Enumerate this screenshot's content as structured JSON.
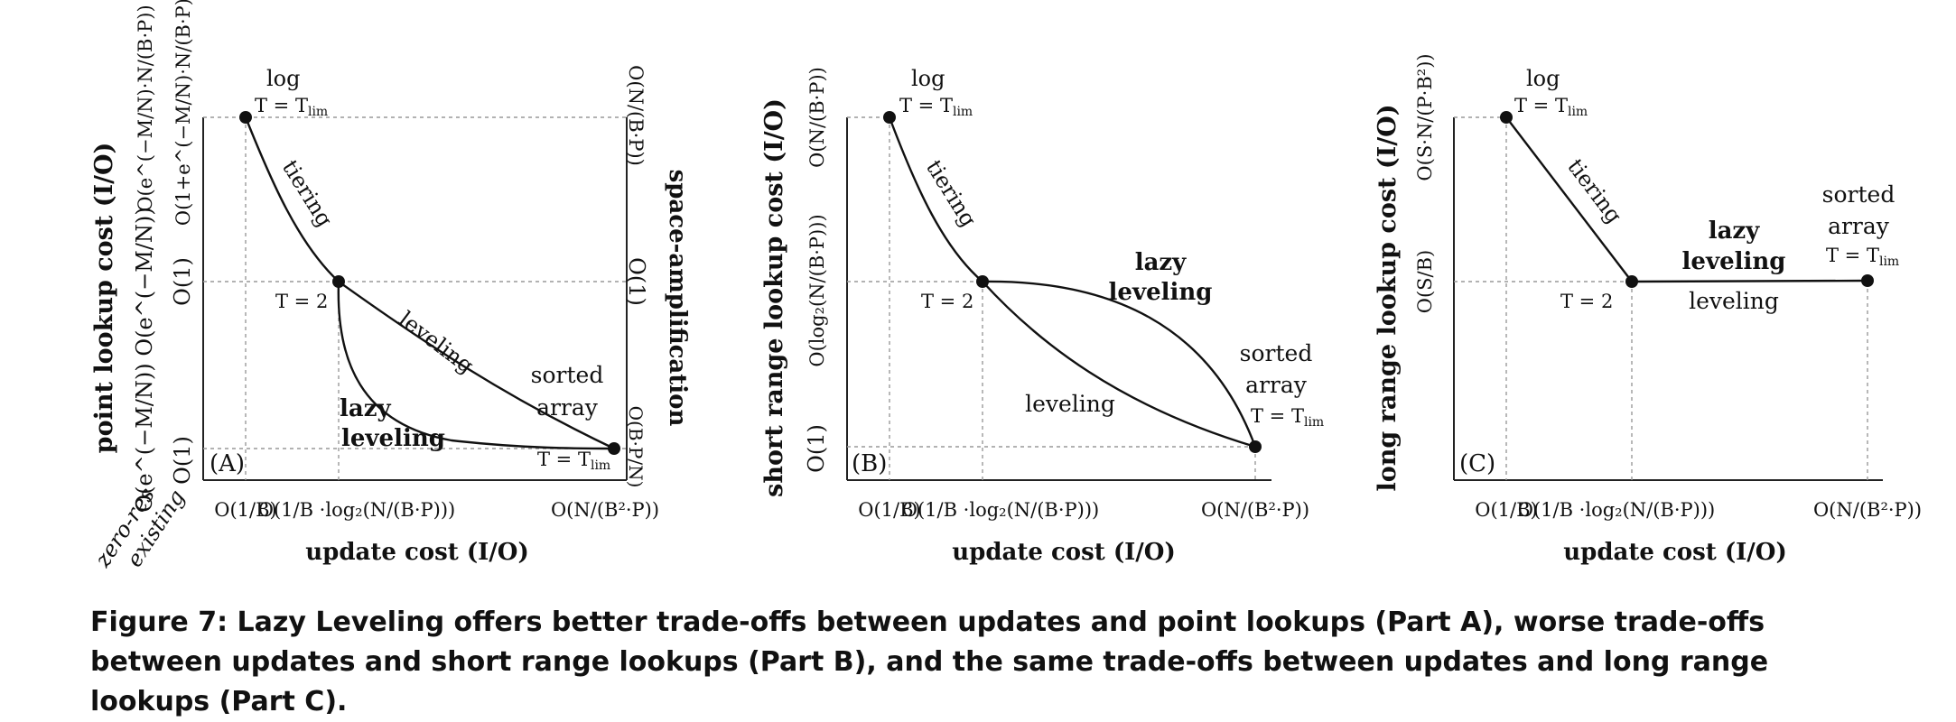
{
  "panels": {
    "a": {
      "tag": "(A)",
      "ylabel": "point lookup cost (I/O)",
      "xlabel": "update cost (I/O)",
      "right_label": "space-amplification",
      "xticks": [
        "O(1/B)",
        "O(1/B ·log₂(N/(B·P)))",
        "O(N/(B²·P))"
      ],
      "row_zero_res": [
        "O(e^(−M/N)·N/(B·P))",
        "O(e^(−M/N))",
        "O(e^(−M/N))"
      ],
      "row_existing": [
        "O(1+e^(−M/N)·N/(B·P))",
        "O(1)",
        "O(1)"
      ],
      "right_ticks": [
        "O(N/(B·P))",
        "O(1)",
        "O(B·P/N)"
      ],
      "left_axis_names": [
        "zero-res",
        "existing"
      ],
      "labels": {
        "log": "log",
        "t_lim_top": "T = T",
        "t2": "T = 2",
        "tiering": "tiering",
        "leveling": "leveling",
        "lazy": "lazy",
        "leveling2": "leveling",
        "sorted": "sorted",
        "array": "array",
        "t_lim_bottom": "T = T",
        "lim": "lim"
      }
    },
    "b": {
      "tag": "(B)",
      "ylabel": "short range lookup cost (I/O)",
      "xlabel": "update cost (I/O)",
      "yticks": [
        "O(N/(B·P))",
        "O(log₂(N/(B·P)))",
        "O(1)"
      ],
      "xticks": [
        "O(1/B)",
        "O(1/B ·log₂(N/(B·P)))",
        "O(N/(B²·P))"
      ],
      "labels": {
        "log": "log",
        "t_lim_top": "T = T",
        "t2": "T = 2",
        "tiering": "tiering",
        "lazy": "lazy",
        "leveling_bold": "leveling",
        "leveling": "leveling",
        "sorted": "sorted",
        "array": "array",
        "t_lim_bottom": "T = T",
        "lim": "lim"
      }
    },
    "c": {
      "tag": "(C)",
      "ylabel": "long range lookup cost (I/O)",
      "xlabel": "update cost (I/O)",
      "yticks": [
        "O(S·N/(P·B²))",
        "O(S/B)"
      ],
      "xticks": [
        "O(1/B)",
        "O(1/B ·log₂(N/(B·P)))",
        "O(N/(B²·P))"
      ],
      "labels": {
        "log": "log",
        "t_lim_top": "T = T",
        "t2": "T = 2",
        "tiering": "tiering",
        "lazy": "lazy",
        "leveling_bold": "leveling",
        "leveling": "leveling",
        "sorted": "sorted",
        "array": "array",
        "t_lim_right": "T = T",
        "lim": "lim"
      }
    }
  },
  "caption": "Figure 7: Lazy Leveling offers better trade-offs between updates and point lookups (Part A), worse trade-offs between updates and short range lookups (Part B), and the same trade-offs between updates and long range lookups (Part C)."
}
